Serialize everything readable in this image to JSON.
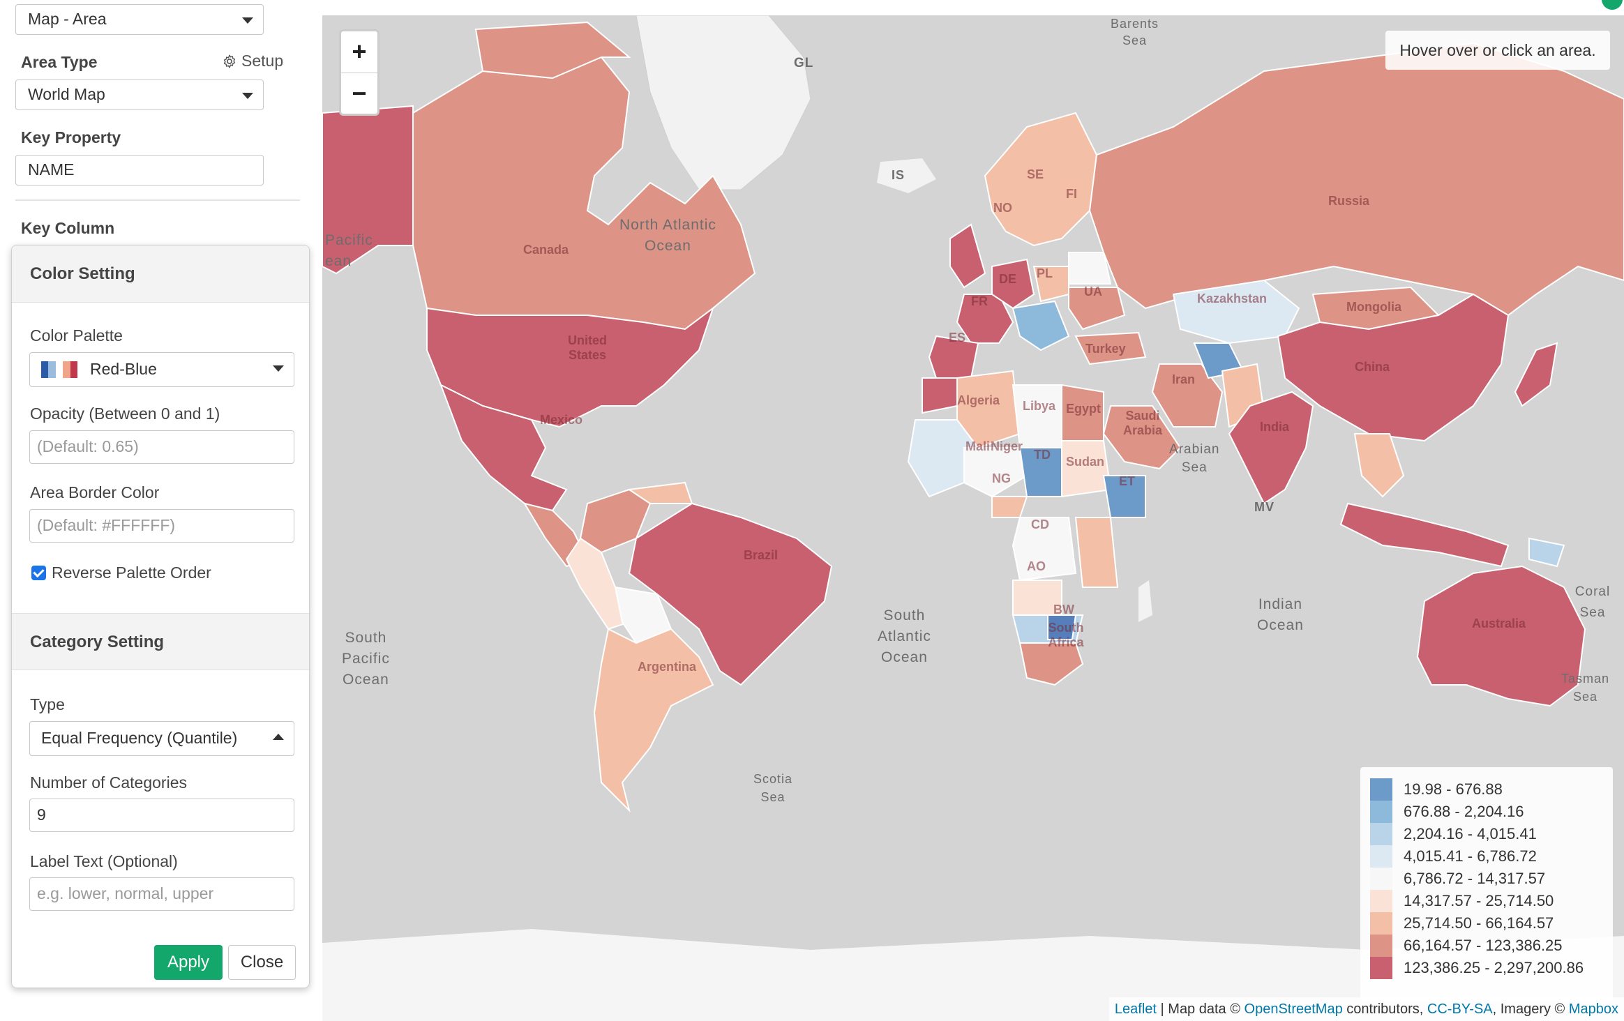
{
  "sidebar": {
    "view_select": "Map - Area",
    "area_type_label": "Area Type",
    "setup_label": "Setup",
    "area_type_value": "World Map",
    "key_property_label": "Key Property",
    "key_property_value": "NAME",
    "key_column_label": "Key Column"
  },
  "popover": {
    "color_setting_title": "Color Setting",
    "palette_label": "Color Palette",
    "palette_value": "Red-Blue",
    "palette_swatch_colors": [
      "#2b5aa8",
      "#9bbcdc",
      "#ffffff",
      "#f0a58a",
      "#c0384b"
    ],
    "opacity_label": "Opacity (Between 0 and 1)",
    "opacity_placeholder": "(Default: 0.65)",
    "border_color_label": "Area Border Color",
    "border_color_placeholder": "(Default: #FFFFFF)",
    "reverse_label": "Reverse Palette Order",
    "reverse_checked": true,
    "category_setting_title": "Category Setting",
    "type_label": "Type",
    "type_value": "Equal Frequency (Quantile)",
    "num_categories_label": "Number of Categories",
    "num_categories_value": "9",
    "label_text_label": "Label Text (Optional)",
    "label_text_placeholder": "e.g. lower, normal, upper",
    "apply_label": "Apply",
    "close_label": "Close"
  },
  "map": {
    "zoom_in": "+",
    "zoom_out": "−",
    "hover_info": "Hover over or click an area.",
    "legend": [
      {
        "range": "19.98 - 676.88",
        "color": "#6c9ac9"
      },
      {
        "range": "676.88 - 2,204.16",
        "color": "#8db9da"
      },
      {
        "range": "2,204.16 - 4,015.41",
        "color": "#b9d4e8"
      },
      {
        "range": "4,015.41 - 6,786.72",
        "color": "#dce9f3"
      },
      {
        "range": "6,786.72 - 14,317.57",
        "color": "#f7f7f7"
      },
      {
        "range": "14,317.57 - 25,714.50",
        "color": "#fbe2d6"
      },
      {
        "range": "25,714.50 - 66,164.57",
        "color": "#f3bfa7"
      },
      {
        "range": "66,164.57 - 123,386.25",
        "color": "#dd9385"
      },
      {
        "range": "123,386.25 - 2,297,200.86",
        "color": "#c9606f"
      }
    ],
    "attribution": {
      "leaflet": "Leaflet",
      "sep1": " | Map data © ",
      "osm": "OpenStreetMap",
      "sep2": " contributors, ",
      "license": "CC-BY-SA",
      "sep3": ", Imagery © ",
      "mapbox": "Mapbox"
    },
    "ocean_labels": {
      "north_atlantic_1": "North Atlantic",
      "north_atlantic_2": "Ocean",
      "pacific_1": "Pacific",
      "pacific_2": "ean",
      "south_pacific_1": "South",
      "south_pacific_2": "Pacific",
      "south_pacific_3": "Ocean",
      "south_atlantic_1": "South",
      "south_atlantic_2": "Atlantic",
      "south_atlantic_3": "Ocean",
      "indian_1": "Indian",
      "indian_2": "Ocean",
      "arabian_1": "Arabian",
      "arabian_2": "Sea",
      "scotia_1": "Scotia",
      "scotia_2": "Sea",
      "coral": "Coral Sea",
      "tasman_1": "Tasman",
      "tasman_2": "Sea",
      "barents_1": "Barents",
      "barents_2": "Sea",
      "gl": "GL",
      "is": "IS",
      "mv": "MV"
    },
    "country_labels": {
      "canada": "Canada",
      "us": "United States",
      "mexico": "Mexico",
      "brazil": "Brazil",
      "argentina": "Argentina",
      "russia": "Russia",
      "china": "China",
      "india": "India",
      "australia": "Australia",
      "kazakhstan": "Kazakhstan",
      "mongolia": "Mongolia",
      "algeria": "Algeria",
      "libya": "Libya",
      "egypt": "Egypt",
      "iran": "Iran",
      "saudi": "Saudi Arabia",
      "sudan": "Sudan",
      "turkey": "Turkey",
      "mali": "Mali",
      "niger": "Niger",
      "cd": "CD",
      "td": "TD",
      "ng": "NG",
      "et": "ET",
      "ao": "AO",
      "bw": "BW",
      "south_africa": "South Africa",
      "fr": "FR",
      "es": "ES",
      "de": "DE",
      "pl": "PL",
      "ua": "UA",
      "se": "SE",
      "fi": "FI",
      "no": "NO"
    }
  }
}
